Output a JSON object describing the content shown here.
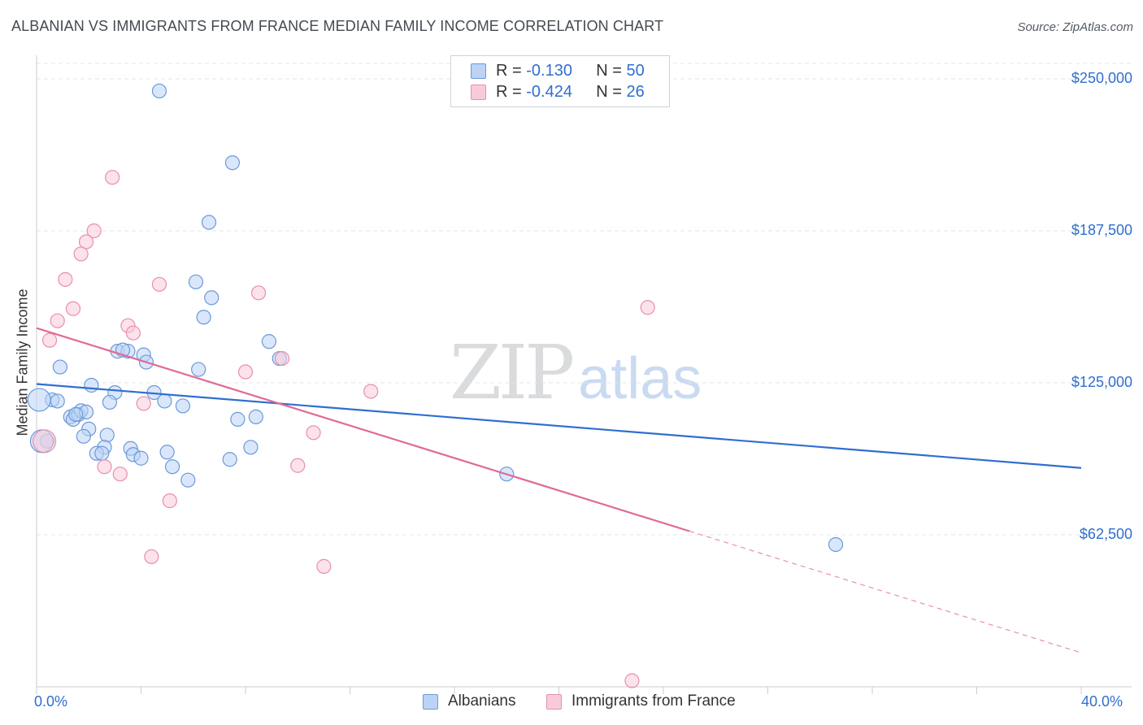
{
  "title": "ALBANIAN VS IMMIGRANTS FROM FRANCE MEDIAN FAMILY INCOME CORRELATION CHART",
  "source": "Source: ZipAtlas.com",
  "watermark": {
    "zip": "ZIP",
    "atlas": "atlas"
  },
  "colors": {
    "blue": "#2f6fcf",
    "blue_fill": "#bcd3f5",
    "pink": "#e06a95",
    "pink_fill": "#f9cbd9"
  },
  "legend": {
    "r1_label": "R =",
    "r1_value": "-0.130",
    "n1_label": "N =",
    "n1_value": "50",
    "r2_label": "R =",
    "r2_value": "-0.424",
    "n2_label": "N =",
    "n2_value": "26"
  },
  "chart_data": {
    "type": "scatter",
    "title": "ALBANIAN VS IMMIGRANTS FROM FRANCE MEDIAN FAMILY INCOME CORRELATION CHART",
    "xlabel": "",
    "ylabel": "Median Family Income",
    "xlim": [
      0,
      40
    ],
    "ylim": [
      0,
      262500
    ],
    "x_tick_labels": [
      "0.0%",
      "40.0%"
    ],
    "y_ticks": [
      62500,
      125000,
      187500,
      250000
    ],
    "y_tick_labels": [
      "$62,500",
      "$125,000",
      "$187,500",
      "$250,000"
    ],
    "grid": "horizontal dashed",
    "legend_position": "top-center",
    "series": [
      {
        "name": "Albanians",
        "color": "#2f6fcf",
        "points": [
          [
            4.7,
            245000
          ],
          [
            7.5,
            215500
          ],
          [
            6.6,
            191000
          ],
          [
            6.1,
            166500
          ],
          [
            6.7,
            160000
          ],
          [
            6.4,
            152000
          ],
          [
            8.9,
            142000
          ],
          [
            3.1,
            138000
          ],
          [
            3.5,
            138000
          ],
          [
            4.1,
            136500
          ],
          [
            9.3,
            135000
          ],
          [
            4.2,
            133500
          ],
          [
            0.9,
            131500
          ],
          [
            6.2,
            130500
          ],
          [
            2.1,
            124000
          ],
          [
            3.0,
            121000
          ],
          [
            4.5,
            121000
          ],
          [
            0.6,
            118000
          ],
          [
            0.8,
            117500
          ],
          [
            4.9,
            117500
          ],
          [
            2.8,
            117000
          ],
          [
            5.6,
            115500
          ],
          [
            1.3,
            111000
          ],
          [
            1.4,
            110000
          ],
          [
            1.6,
            112000
          ],
          [
            1.7,
            113500
          ],
          [
            1.9,
            113000
          ],
          [
            8.4,
            111000
          ],
          [
            7.7,
            110000
          ],
          [
            2.0,
            106000
          ],
          [
            2.7,
            103500
          ],
          [
            1.8,
            103000
          ],
          [
            0.4,
            101000
          ],
          [
            2.6,
            98500
          ],
          [
            3.6,
            98000
          ],
          [
            8.2,
            98500
          ],
          [
            5.0,
            96500
          ],
          [
            2.3,
            96000
          ],
          [
            3.7,
            95500
          ],
          [
            2.5,
            96000
          ],
          [
            4.0,
            94000
          ],
          [
            7.4,
            93500
          ],
          [
            5.2,
            90500
          ],
          [
            5.8,
            85000
          ],
          [
            18.0,
            87500
          ],
          [
            30.6,
            58500
          ],
          [
            0.1,
            118000
          ],
          [
            0.2,
            101000
          ],
          [
            3.3,
            138500
          ],
          [
            1.5,
            112000
          ]
        ]
      },
      {
        "name": "Immigrants from France",
        "color": "#e06a95",
        "points": [
          [
            2.9,
            209500
          ],
          [
            2.2,
            187500
          ],
          [
            1.9,
            183000
          ],
          [
            1.7,
            178000
          ],
          [
            1.1,
            167500
          ],
          [
            4.7,
            165500
          ],
          [
            8.5,
            162000
          ],
          [
            23.4,
            156000
          ],
          [
            1.4,
            155500
          ],
          [
            0.8,
            150500
          ],
          [
            3.5,
            148500
          ],
          [
            3.7,
            145500
          ],
          [
            0.5,
            142500
          ],
          [
            9.4,
            135000
          ],
          [
            8.0,
            129500
          ],
          [
            12.8,
            121500
          ],
          [
            4.1,
            116500
          ],
          [
            10.6,
            104500
          ],
          [
            0.3,
            101000
          ],
          [
            2.6,
            90500
          ],
          [
            3.2,
            87500
          ],
          [
            10.0,
            91000
          ],
          [
            5.1,
            76500
          ],
          [
            4.4,
            53500
          ],
          [
            11.0,
            49500
          ],
          [
            22.8,
            2500
          ]
        ]
      }
    ],
    "trend_lines": [
      {
        "series": "Albanians",
        "from": [
          0,
          124500
        ],
        "to": [
          40,
          90000
        ]
      },
      {
        "series": "Immigrants from France",
        "from": [
          0,
          147500
        ],
        "to": [
          25,
          64000
        ],
        "dashed_to": [
          40,
          14000
        ]
      }
    ]
  },
  "bottom_legend": {
    "series1": "Albanians",
    "series2": "Immigrants from France"
  }
}
